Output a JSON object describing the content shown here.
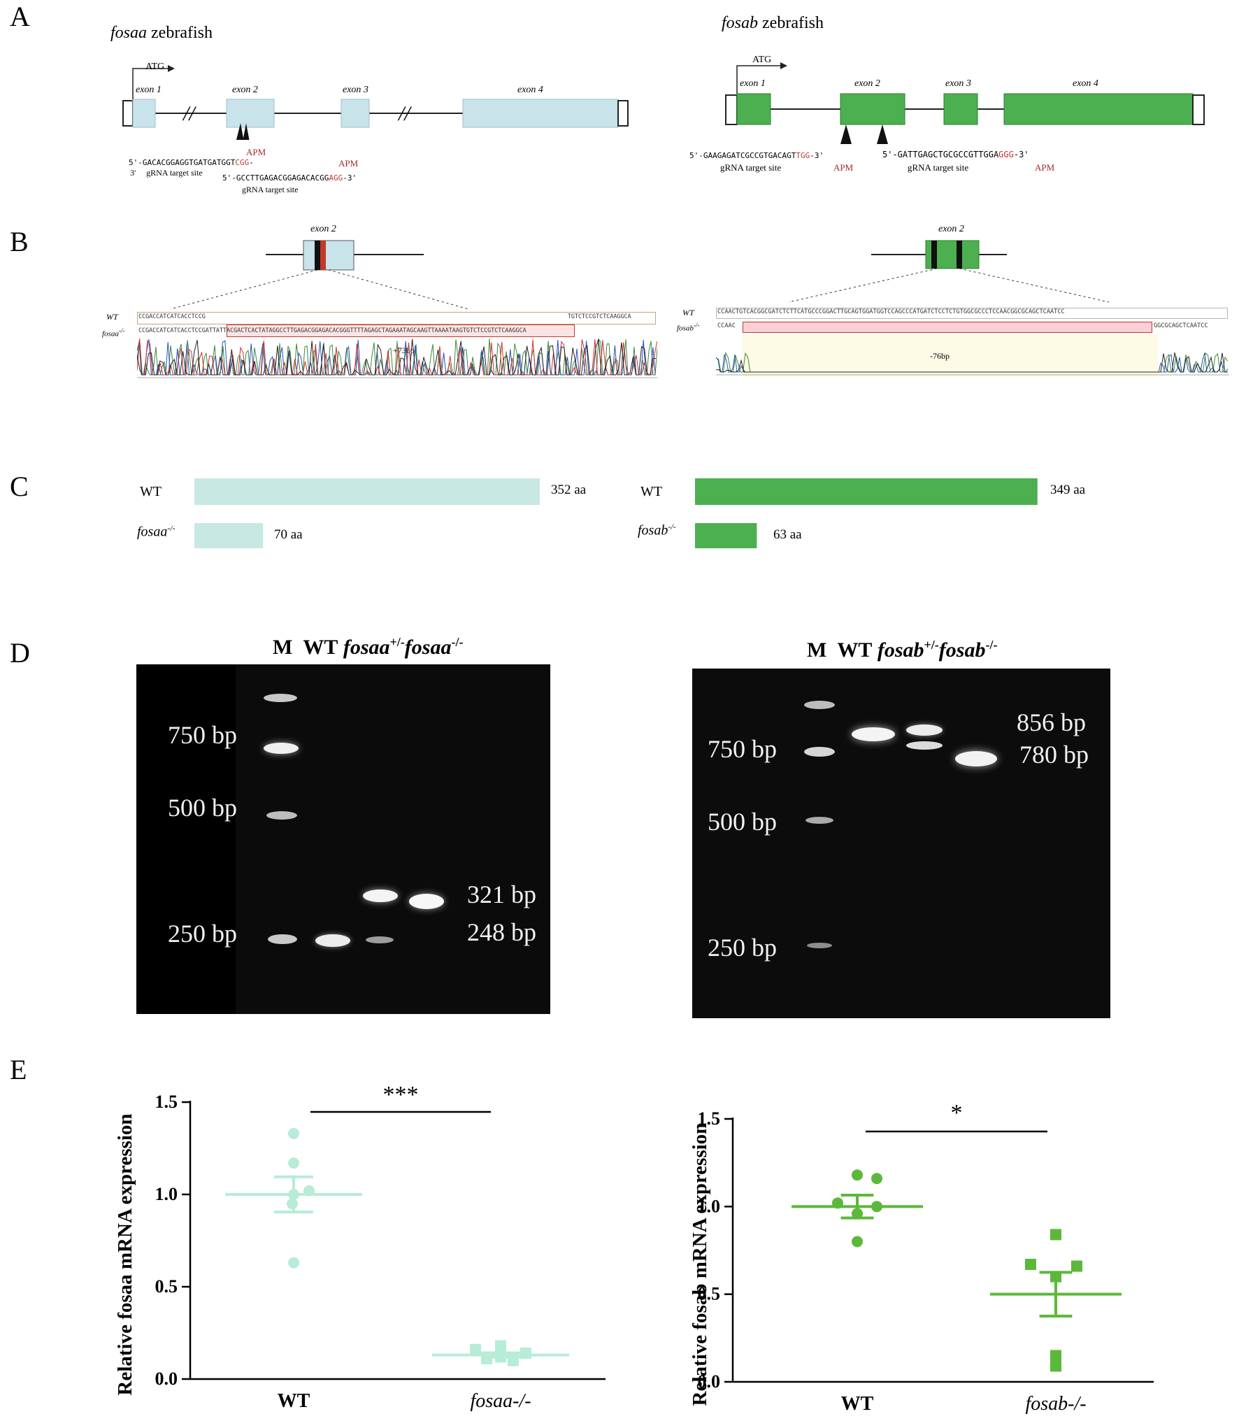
{
  "panels": {
    "A": "A",
    "B": "B",
    "C": "C",
    "D": "D",
    "E": "E"
  },
  "panelA": {
    "left": {
      "title_italic": "fosaa",
      "title_rest": " zebrafish",
      "atg": "ATG",
      "exons": [
        "exon 1",
        "exon 2",
        "exon 3",
        "exon 4"
      ],
      "apm1": "APM",
      "apm2": "APM",
      "seq1_prefix": "5'-GACACGGAGGTGATGATGGT",
      "seq1_pam": "CGG",
      "seq1_suffix": "-",
      "seq1_tail": "3'",
      "grna1": "gRNA target site",
      "seq2_prefix": "5'-GCCTTGAGACGGAGACACGG",
      "seq2_pam": "AGG",
      "seq2_suffix": "-3'",
      "grna2": "gRNA target site",
      "color_exon": "#c9e3ea"
    },
    "right": {
      "title_italic": "fosab",
      "title_rest": " zebrafish",
      "atg": "ATG",
      "exons": [
        "exon 1",
        "exon 2",
        "exon 3",
        "exon 4"
      ],
      "seq1_prefix": "5'-GAAGAGATCGCCGTGACAGT",
      "seq1_pam": "TGG",
      "seq1_suffix": "-3'",
      "grna1": "gRNA target site",
      "apm1": "APM",
      "seq2_prefix": "5'-GATTGAGCTGCGCCGTTGGA",
      "seq2_pam": "GGG",
      "seq2_suffix": "-3'",
      "grna2": "gRNA target site",
      "apm2": "APM",
      "color_exon": "#4caf50"
    }
  },
  "panelB": {
    "left": {
      "exon": "exon 2",
      "wt": "WT",
      "mut": "fosaa",
      "mut_sup": "-/-",
      "wt_seq_a": "CCGACCATCATCACCTCCG",
      "wt_seq_b": "TGTCTCCGTCTCAAGGCA",
      "mut_seq": "CCGACCATCATCACCTCCGATTATTACGACTCACTATAGGCCTTGAGACGGAGACACGGGTTTTAGAGCTAGAAATAGCAAGTTAAAATAAGTGTCTCCGTCTCAAGGCA",
      "indel": "+73bp"
    },
    "right": {
      "exon": "exon 2",
      "wt": "WT",
      "mut": "fosab",
      "mut_sup": "-/-",
      "wt_seq": "CCAACTGTCACGGCGATCTCTTCATGCCCGGACTTGCAGTGGATGGTCCAGCCCATGATCTCCTCTGTGGCGCCCTCCAACGGCGCAGCTCAATCC",
      "mut_seq_a": "CCAAC",
      "mut_seq_b": "GGCGCAGCTCAATCC",
      "indel": "-76bp"
    }
  },
  "panelC": {
    "left": {
      "wt": "WT",
      "wt_len": "352 aa",
      "mut": "fosaa",
      "mut_sup": "-/-",
      "mut_len": "70 aa",
      "wt_value": 352,
      "mut_value": 70
    },
    "right": {
      "wt": "WT",
      "wt_len": "349 aa",
      "mut": "fosab",
      "mut_sup": "-/-",
      "mut_len": "63 aa",
      "wt_value": 349,
      "mut_value": 63
    }
  },
  "panelD": {
    "left": {
      "h_m": "M",
      "h_wt": "WT",
      "h_het": "fosaa",
      "h_het_sup": "+/-",
      "h_hom": "fosaa",
      "h_hom_sup": "-/-",
      "markers": [
        "750 bp",
        "500 bp",
        "250 bp"
      ],
      "bands": [
        "321 bp",
        "248 bp"
      ]
    },
    "right": {
      "h_m": "M",
      "h_wt": "WT",
      "h_het": "fosab",
      "h_het_sup": "+/-",
      "h_hom": "fosab",
      "h_hom_sup": "-/-",
      "markers": [
        "750 bp",
        "500 bp",
        "250 bp"
      ],
      "bands": [
        "856 bp",
        "780 bp"
      ]
    }
  },
  "chart_data": [
    {
      "type": "scatter",
      "ylabel": "Relative fosaa mRNA expression",
      "categories": [
        "WT",
        "fosaa-/-"
      ],
      "yticks": [
        "0.0",
        "0.5",
        "1.0",
        "1.5"
      ],
      "ylim": [
        0,
        1.5
      ],
      "significance": "***",
      "color": "#b7ecd7",
      "series": [
        {
          "values": [
            1.33,
            1.17,
            1.02,
            1.0,
            0.95,
            0.63
          ],
          "mean": 1.0,
          "sem": 0.095,
          "marker": "circle"
        },
        {
          "values": [
            0.18,
            0.16,
            0.14,
            0.12,
            0.11,
            0.1
          ],
          "mean": 0.13,
          "sem": 0.012,
          "marker": "square"
        }
      ]
    },
    {
      "type": "scatter",
      "ylabel": "Relative fosab mRNA expression",
      "categories": [
        "WT",
        "fosab-/-"
      ],
      "yticks": [
        "0.0",
        "0.5",
        "1.0",
        "1.5"
      ],
      "ylim": [
        0,
        1.5
      ],
      "significance": "*",
      "color": "#5cb83a",
      "series": [
        {
          "values": [
            1.18,
            1.16,
            1.02,
            1.0,
            0.96,
            0.8
          ],
          "mean": 1.0,
          "sem": 0.065,
          "marker": "circle"
        },
        {
          "values": [
            0.84,
            0.67,
            0.66,
            0.6,
            0.15,
            0.09
          ],
          "mean": 0.5,
          "sem": 0.125,
          "marker": "square"
        }
      ]
    }
  ]
}
